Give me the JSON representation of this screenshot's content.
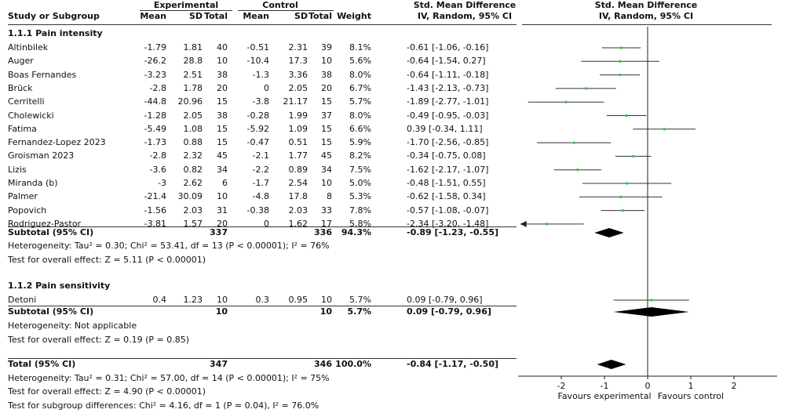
{
  "header": {
    "experimental": "Experimental",
    "control": "Control",
    "smd_title": "Std. Mean Difference",
    "smd_method": "IV, Random, 95% CI",
    "plot_title": "Std. Mean Difference",
    "plot_method": "IV, Random, 95% CI",
    "study_col": "Study or Subgroup",
    "mean": "Mean",
    "sd": "SD",
    "total": "Total",
    "mean2": "Mean",
    "sd2": "SD",
    "total2": "Total",
    "weight": "Weight"
  },
  "subgroups": [
    {
      "title": "1.1.1 Pain intensity",
      "subtotal": {
        "label": "Subtotal (95% CI)",
        "exp_total": "337",
        "ctrl_total": "336",
        "weight": "94.3%",
        "ci": "-0.89 [-1.23, -0.55]"
      },
      "heterogeneity": "Heterogeneity: Tau² = 0.30; Chi² = 53.41, df = 13 (P < 0.00001); I² = 76%",
      "overall": "Test for overall effect: Z = 5.11 (P < 0.00001)"
    },
    {
      "title": "1.1.2 Pain sensitivity",
      "subtotal": {
        "label": "Subtotal (95% CI)",
        "exp_total": "10",
        "ctrl_total": "10",
        "weight": "5.7%",
        "ci": "0.09 [-0.79, 0.96]"
      },
      "heterogeneity": "Heterogeneity: Not applicable",
      "overall": "Test for overall effect: Z = 0.19 (P = 0.85)"
    }
  ],
  "total": {
    "label": "Total (95% CI)",
    "exp_total": "347",
    "ctrl_total": "346",
    "weight": "100.0%",
    "ci": "-0.84 [-1.17, -0.50]",
    "heterogeneity": "Heterogeneity: Tau² = 0.31; Chi² = 57.00, df = 14 (P < 0.00001); I² = 75%",
    "overall": "Test for overall effect: Z = 4.90 (P < 0.00001)",
    "subgroup_diff": "Test for subgroup differences: Chi² = 4.16, df = 1 (P = 0.04), I² = 76.0%"
  },
  "footer": {
    "favours_left": "Favours experimental",
    "favours_right": "Favours control"
  },
  "colors": {
    "point": "#33cc33",
    "diamond": "#000000",
    "line": "#333333"
  },
  "chart_data": {
    "type": "forest",
    "xlim": [
      -3,
      3
    ],
    "xticks": [
      "-2",
      "-1",
      "0",
      "1",
      "2"
    ],
    "tick_values": [
      -2,
      -1,
      0,
      1,
      2
    ],
    "studies": [
      {
        "name": "Altinbilek",
        "exp_mean": "-1.79",
        "exp_sd": "1.81",
        "exp_n": "40",
        "ctrl_mean": "-0.51",
        "ctrl_sd": "2.31",
        "ctrl_n": "39",
        "weight": "8.1%",
        "ci": "-0.61 [-1.06, -0.16]",
        "smd": -0.61,
        "lo": -1.06,
        "hi": -0.16,
        "group": 0
      },
      {
        "name": "Auger",
        "exp_mean": "-26.2",
        "exp_sd": "28.8",
        "exp_n": "10",
        "ctrl_mean": "-10.4",
        "ctrl_sd": "17.3",
        "ctrl_n": "10",
        "weight": "5.6%",
        "ci": "-0.64 [-1.54, 0.27]",
        "smd": -0.64,
        "lo": -1.54,
        "hi": 0.27,
        "group": 0
      },
      {
        "name": "Boas Fernandes",
        "exp_mean": "-3.23",
        "exp_sd": "2.51",
        "exp_n": "38",
        "ctrl_mean": "-1.3",
        "ctrl_sd": "3.36",
        "ctrl_n": "38",
        "weight": "8.0%",
        "ci": "-0.64 [-1.11, -0.18]",
        "smd": -0.64,
        "lo": -1.11,
        "hi": -0.18,
        "group": 0
      },
      {
        "name": "Brück",
        "exp_mean": "-2.8",
        "exp_sd": "1.78",
        "exp_n": "20",
        "ctrl_mean": "0",
        "ctrl_sd": "2.05",
        "ctrl_n": "20",
        "weight": "6.7%",
        "ci": "-1.43 [-2.13, -0.73]",
        "smd": -1.43,
        "lo": -2.13,
        "hi": -0.73,
        "group": 0
      },
      {
        "name": "Cerritelli",
        "exp_mean": "-44.8",
        "exp_sd": "20.96",
        "exp_n": "15",
        "ctrl_mean": "-3.8",
        "ctrl_sd": "21.17",
        "ctrl_n": "15",
        "weight": "5.7%",
        "ci": "-1.89 [-2.77, -1.01]",
        "smd": -1.89,
        "lo": -2.77,
        "hi": -1.01,
        "group": 0
      },
      {
        "name": "Cholewicki",
        "exp_mean": "-1.28",
        "exp_sd": "2.05",
        "exp_n": "38",
        "ctrl_mean": "-0.28",
        "ctrl_sd": "1.99",
        "ctrl_n": "37",
        "weight": "8.0%",
        "ci": "-0.49 [-0.95, -0.03]",
        "smd": -0.49,
        "lo": -0.95,
        "hi": -0.03,
        "group": 0
      },
      {
        "name": "Fatima",
        "exp_mean": "-5.49",
        "exp_sd": "1.08",
        "exp_n": "15",
        "ctrl_mean": "-5.92",
        "ctrl_sd": "1.09",
        "ctrl_n": "15",
        "weight": "6.6%",
        "ci": "0.39 [-0.34, 1.11]",
        "smd": 0.39,
        "lo": -0.34,
        "hi": 1.11,
        "group": 0
      },
      {
        "name": "Fernandez-Lopez 2023",
        "exp_mean": "-1.73",
        "exp_sd": "0.88",
        "exp_n": "15",
        "ctrl_mean": "-0.47",
        "ctrl_sd": "0.51",
        "ctrl_n": "15",
        "weight": "5.9%",
        "ci": "-1.70 [-2.56, -0.85]",
        "smd": -1.7,
        "lo": -2.56,
        "hi": -0.85,
        "group": 0
      },
      {
        "name": "Groisman 2023",
        "exp_mean": "-2.8",
        "exp_sd": "2.32",
        "exp_n": "45",
        "ctrl_mean": "-2.1",
        "ctrl_sd": "1.77",
        "ctrl_n": "45",
        "weight": "8.2%",
        "ci": "-0.34 [-0.75, 0.08]",
        "smd": -0.34,
        "lo": -0.75,
        "hi": 0.08,
        "group": 0
      },
      {
        "name": "Lizis",
        "exp_mean": "-3.6",
        "exp_sd": "0.82",
        "exp_n": "34",
        "ctrl_mean": "-2.2",
        "ctrl_sd": "0.89",
        "ctrl_n": "34",
        "weight": "7.5%",
        "ci": "-1.62 [-2.17, -1.07]",
        "smd": -1.62,
        "lo": -2.17,
        "hi": -1.07,
        "group": 0
      },
      {
        "name": "Miranda (b)",
        "exp_mean": "-3",
        "exp_sd": "2.62",
        "exp_n": "6",
        "ctrl_mean": "-1.7",
        "ctrl_sd": "2.54",
        "ctrl_n": "10",
        "weight": "5.0%",
        "ci": "-0.48 [-1.51, 0.55]",
        "smd": -0.48,
        "lo": -1.51,
        "hi": 0.55,
        "group": 0
      },
      {
        "name": "Palmer",
        "exp_mean": "-21.4",
        "exp_sd": "30.09",
        "exp_n": "10",
        "ctrl_mean": "-4.8",
        "ctrl_sd": "17.8",
        "ctrl_n": "8",
        "weight": "5.3%",
        "ci": "-0.62 [-1.58, 0.34]",
        "smd": -0.62,
        "lo": -1.58,
        "hi": 0.34,
        "group": 0
      },
      {
        "name": "Popovich",
        "exp_mean": "-1.56",
        "exp_sd": "2.03",
        "exp_n": "31",
        "ctrl_mean": "-0.38",
        "ctrl_sd": "2.03",
        "ctrl_n": "33",
        "weight": "7.8%",
        "ci": "-0.57 [-1.08, -0.07]",
        "smd": -0.57,
        "lo": -1.08,
        "hi": -0.07,
        "group": 0
      },
      {
        "name": "Rodriguez-Pastor",
        "exp_mean": "-3.81",
        "exp_sd": "1.57",
        "exp_n": "20",
        "ctrl_mean": "0",
        "ctrl_sd": "1.62",
        "ctrl_n": "17",
        "weight": "5.8%",
        "ci": "-2.34 [-3.20, -1.48]",
        "smd": -2.34,
        "lo": -3.2,
        "hi": -1.48,
        "group": 0
      },
      {
        "name": "Detoni",
        "exp_mean": "0.4",
        "exp_sd": "1.23",
        "exp_n": "10",
        "ctrl_mean": "0.3",
        "ctrl_sd": "0.95",
        "ctrl_n": "10",
        "weight": "5.7%",
        "ci": "0.09 [-0.79, 0.96]",
        "smd": 0.09,
        "lo": -0.79,
        "hi": 0.96,
        "group": 1
      }
    ],
    "pooled": [
      {
        "label": "Subtotal 1.1.1",
        "smd": -0.89,
        "lo": -1.23,
        "hi": -0.55
      },
      {
        "label": "Subtotal 1.1.2",
        "smd": 0.09,
        "lo": -0.79,
        "hi": 0.96
      },
      {
        "label": "Total",
        "smd": -0.84,
        "lo": -1.17,
        "hi": -0.5
      }
    ]
  }
}
